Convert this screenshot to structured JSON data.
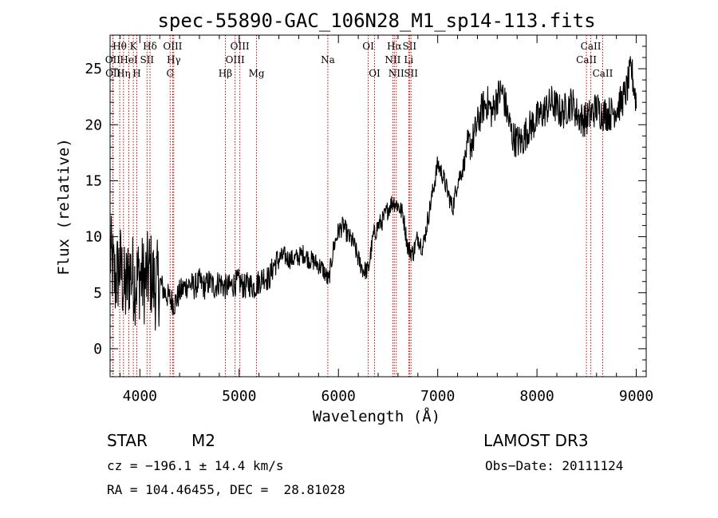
{
  "chart_data": {
    "type": "line",
    "title": "spec-55890-GAC_106N28_M1_sp14-113.fits",
    "xlabel": "Wavelength (Å)",
    "ylabel": "Flux (relative)",
    "xlim": [
      3700,
      9100
    ],
    "ylim": [
      -2.5,
      28
    ],
    "x_ticks": [
      4000,
      5000,
      6000,
      7000,
      8000,
      9000
    ],
    "y_ticks": [
      0,
      5,
      10,
      15,
      20,
      25
    ],
    "line_color": "#000000",
    "marker_color": "#cc0000",
    "series": [
      {
        "name": "flux",
        "x": [
          3700,
          3750,
          3800,
          3850,
          3900,
          3950,
          4000,
          4050,
          4100,
          4150,
          4200,
          4250,
          4300,
          4350,
          4400,
          4450,
          4500,
          4550,
          4600,
          4650,
          4700,
          4750,
          4800,
          4850,
          4900,
          4950,
          5000,
          5050,
          5100,
          5150,
          5200,
          5250,
          5300,
          5350,
          5400,
          5450,
          5500,
          5550,
          5600,
          5650,
          5700,
          5750,
          5800,
          5850,
          5900,
          5950,
          6000,
          6050,
          6100,
          6150,
          6200,
          6250,
          6300,
          6350,
          6400,
          6450,
          6500,
          6550,
          6600,
          6650,
          6700,
          6750,
          6800,
          6850,
          6900,
          6950,
          7000,
          7050,
          7100,
          7150,
          7200,
          7250,
          7300,
          7350,
          7400,
          7450,
          7500,
          7550,
          7600,
          7650,
          7700,
          7750,
          7800,
          7850,
          7900,
          7950,
          8000,
          8050,
          8100,
          8150,
          8200,
          8250,
          8300,
          8350,
          8400,
          8450,
          8500,
          8550,
          8600,
          8650,
          8700,
          8750,
          8800,
          8850,
          8900,
          8950,
          9000
        ],
        "y": [
          8.5,
          6.0,
          7.5,
          5.0,
          7.0,
          6.0,
          6.5,
          6.0,
          7.0,
          5.5,
          6.0,
          5.0,
          4.5,
          4.0,
          5.0,
          5.5,
          5.8,
          5.5,
          6.0,
          5.5,
          6.0,
          5.5,
          6.0,
          5.5,
          5.5,
          5.8,
          6.0,
          5.5,
          5.8,
          5.5,
          6.0,
          6.5,
          6.2,
          7.5,
          8.0,
          8.3,
          8.0,
          8.0,
          8.2,
          8.5,
          8.0,
          7.8,
          7.5,
          7.0,
          6.0,
          9.0,
          10.5,
          11.0,
          10.0,
          9.5,
          8.0,
          7.0,
          7.0,
          10.0,
          11.0,
          11.5,
          12.5,
          13.2,
          12.8,
          12.0,
          9.0,
          8.5,
          10.0,
          9.0,
          11.5,
          14.0,
          16.5,
          15.5,
          14.0,
          12.5,
          15.0,
          16.0,
          18.0,
          18.5,
          20.0,
          21.5,
          22.0,
          21.0,
          22.5,
          23.0,
          21.0,
          19.0,
          18.5,
          18.5,
          19.5,
          20.0,
          20.5,
          21.0,
          21.5,
          22.0,
          21.5,
          21.0,
          21.5,
          22.0,
          21.0,
          20.5,
          20.5,
          21.0,
          21.5,
          21.0,
          21.0,
          21.0,
          21.5,
          22.0,
          23.0,
          25.0,
          22.0
        ]
      }
    ],
    "line_markers": [
      {
        "name": "OII",
        "x": 3727,
        "row": 2
      },
      {
        "name": "OII",
        "x": 3730,
        "row": 3
      },
      {
        "name": "Hθ",
        "x": 3797,
        "row": 1
      },
      {
        "name": "Hη",
        "x": 3835,
        "row": 3
      },
      {
        "name": "HeI",
        "x": 3889,
        "row": 2
      },
      {
        "name": "K",
        "x": 3934,
        "row": 1
      },
      {
        "name": "H",
        "x": 3969,
        "row": 3
      },
      {
        "name": "SII",
        "x": 4072,
        "row": 2
      },
      {
        "name": "Hδ",
        "x": 4102,
        "row": 1
      },
      {
        "name": "G",
        "x": 4305,
        "row": 3
      },
      {
        "name": "OIII",
        "x": 4330,
        "row": 1
      },
      {
        "name": "Hγ",
        "x": 4341,
        "row": 2
      },
      {
        "name": "Hβ",
        "x": 4861,
        "row": 3
      },
      {
        "name": "OIII",
        "x": 4959,
        "row": 2
      },
      {
        "name": "OIII",
        "x": 5007,
        "row": 1
      },
      {
        "name": "Mg",
        "x": 5175,
        "row": 3
      },
      {
        "name": "Na",
        "x": 5893,
        "row": 2
      },
      {
        "name": "OI",
        "x": 6300,
        "row": 1
      },
      {
        "name": "OI",
        "x": 6364,
        "row": 3
      },
      {
        "name": "NII",
        "x": 6548,
        "row": 2
      },
      {
        "name": "Hα",
        "x": 6563,
        "row": 1
      },
      {
        "name": "NII",
        "x": 6583,
        "row": 3
      },
      {
        "name": "SII",
        "x": 6716,
        "row": 1
      },
      {
        "name": "Li",
        "x": 6708,
        "row": 2
      },
      {
        "name": "SII",
        "x": 6731,
        "row": 3
      },
      {
        "name": "CaII",
        "x": 8498,
        "row": 2
      },
      {
        "name": "CaII",
        "x": 8542,
        "row": 1
      },
      {
        "name": "CaII",
        "x": 8662,
        "row": 3
      }
    ]
  },
  "info": {
    "object_class": "STAR",
    "subclass": "M2",
    "survey": "LAMOST DR3",
    "redshift_line": "cz = −196.1 ± 14.4 km/s",
    "obs_date_line": "Obs−Date: 20111124",
    "coords_line": "RA = 104.46455, DEC =  28.81028"
  }
}
